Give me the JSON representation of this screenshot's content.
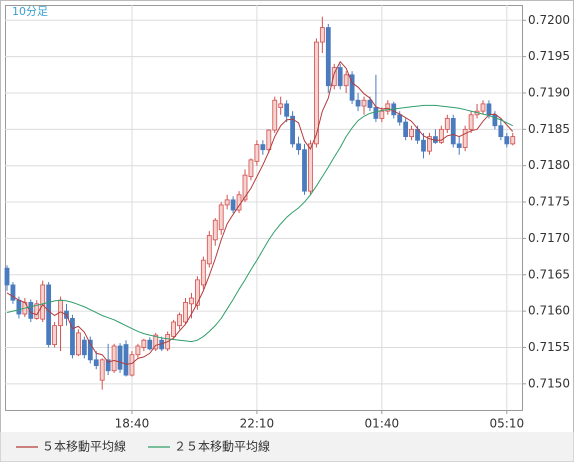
{
  "chart_data": {
    "type": "candlestick",
    "title": "10分足",
    "categories": [
      null,
      null,
      null,
      null,
      null,
      null,
      null,
      null,
      null,
      null,
      null,
      null,
      null,
      null,
      null,
      null,
      null,
      null,
      null,
      null,
      null,
      "18:40",
      null,
      null,
      null,
      null,
      null,
      null,
      null,
      null,
      null,
      null,
      null,
      null,
      null,
      null,
      null,
      null,
      null,
      null,
      null,
      null,
      "22:10",
      null,
      null,
      null,
      null,
      null,
      null,
      null,
      null,
      null,
      null,
      null,
      null,
      null,
      null,
      null,
      null,
      null,
      null,
      null,
      null,
      "01:40",
      null,
      null,
      null,
      null,
      null,
      null,
      null,
      null,
      null,
      null,
      null,
      null,
      null,
      null,
      null,
      null,
      null,
      null,
      null,
      null,
      "05:10",
      null
    ],
    "open": [
      0.71659,
      0.71636,
      0.71615,
      0.71596,
      0.71612,
      0.7159,
      0.71589,
      0.71636,
      0.71554,
      0.7158,
      0.716,
      0.7159,
      0.7154,
      0.7156,
      0.7156,
      0.71533,
      0.71505,
      0.71533,
      0.71518,
      0.71552,
      0.71554,
      0.71512,
      0.7154,
      0.7155,
      0.7156,
      0.71548,
      0.7156,
      0.71548,
      0.71565,
      0.7158,
      0.71585,
      0.7161,
      0.71608,
      0.71636,
      0.71665,
      0.71698,
      0.71712,
      0.71746,
      0.71753,
      0.71739,
      0.71753,
      0.71785,
      0.71806,
      0.71829,
      0.71822,
      0.71849,
      0.7188,
      0.71885,
      0.71868,
      0.7183,
      0.71822,
      0.71765,
      0.7183,
      0.7197,
      0.7199,
      0.7191,
      0.71935,
      0.7191,
      0.71925,
      0.7189,
      0.71882,
      0.7189,
      0.7188,
      0.71865,
      0.71875,
      0.71885,
      0.7187,
      0.7186,
      0.7184,
      0.7185,
      0.71835,
      0.7182,
      0.7184,
      0.71832,
      0.7185,
      0.71865,
      0.7183,
      0.71825,
      0.7185,
      0.7187,
      0.71875,
      0.71885,
      0.7187,
      0.71855,
      0.7184,
      0.7183
    ],
    "high": [
      0.71663,
      0.7164,
      0.7162,
      0.71618,
      0.71616,
      0.71615,
      0.71642,
      0.7164,
      0.71585,
      0.7162,
      0.7161,
      0.71595,
      0.71575,
      0.71565,
      0.71565,
      0.71545,
      0.71535,
      0.71555,
      0.71555,
      0.71556,
      0.7156,
      0.71545,
      0.71555,
      0.71562,
      0.71564,
      0.7157,
      0.71565,
      0.71572,
      0.71588,
      0.71598,
      0.71618,
      0.71625,
      0.71648,
      0.71675,
      0.7171,
      0.71728,
      0.7175,
      0.7176,
      0.71758,
      0.71765,
      0.71795,
      0.7181,
      0.71835,
      0.71835,
      0.7185,
      0.71895,
      0.71895,
      0.7189,
      0.71875,
      0.7184,
      0.7183,
      0.71835,
      0.71975,
      0.72005,
      0.71995,
      0.7194,
      0.7194,
      0.7193,
      0.7193,
      0.719,
      0.71895,
      0.71895,
      0.71925,
      0.7188,
      0.7189,
      0.71888,
      0.71875,
      0.71865,
      0.71855,
      0.71855,
      0.71845,
      0.71845,
      0.7185,
      0.71855,
      0.7187,
      0.7187,
      0.7184,
      0.71855,
      0.71875,
      0.71885,
      0.7189,
      0.7189,
      0.71875,
      0.71865,
      0.71845,
      0.71845
    ],
    "low": [
      0.71628,
      0.7161,
      0.7159,
      0.71592,
      0.71585,
      0.71588,
      0.71585,
      0.7155,
      0.7155,
      0.71545,
      0.7158,
      0.71535,
      0.71538,
      0.71535,
      0.71528,
      0.7152,
      0.71492,
      0.71512,
      0.71515,
      0.71515,
      0.7151,
      0.7151,
      0.71536,
      0.71545,
      0.71546,
      0.71545,
      0.71545,
      0.71545,
      0.71562,
      0.71575,
      0.71582,
      0.7159,
      0.71602,
      0.7163,
      0.7166,
      0.7169,
      0.71705,
      0.7174,
      0.71735,
      0.71735,
      0.7175,
      0.7178,
      0.718,
      0.71815,
      0.71818,
      0.71845,
      0.7187,
      0.7186,
      0.71825,
      0.71815,
      0.7176,
      0.7176,
      0.71825,
      0.71955,
      0.719,
      0.71905,
      0.71905,
      0.719,
      0.71885,
      0.71875,
      0.7187,
      0.71875,
      0.7186,
      0.7186,
      0.7187,
      0.71865,
      0.71855,
      0.71835,
      0.71835,
      0.7183,
      0.7181,
      0.71815,
      0.7183,
      0.7183,
      0.71845,
      0.71825,
      0.71815,
      0.7182,
      0.71845,
      0.71865,
      0.7187,
      0.71865,
      0.7185,
      0.71835,
      0.71825,
      0.71828
    ],
    "close": [
      0.71636,
      0.71615,
      0.71596,
      0.71612,
      0.7159,
      0.7161,
      0.71636,
      0.71554,
      0.7158,
      0.71615,
      0.7159,
      0.7154,
      0.7157,
      0.7154,
      0.71533,
      0.71525,
      0.71533,
      0.71518,
      0.71552,
      0.7152,
      0.71512,
      0.7154,
      0.71552,
      0.7156,
      0.71548,
      0.71567,
      0.71548,
      0.71568,
      0.71585,
      0.71595,
      0.71612,
      0.71618,
      0.71643,
      0.7167,
      0.71704,
      0.71725,
      0.71746,
      0.71753,
      0.71739,
      0.7176,
      0.71787,
      0.71808,
      0.71829,
      0.71822,
      0.71849,
      0.7189,
      0.71885,
      0.71868,
      0.7183,
      0.71822,
      0.71765,
      0.7183,
      0.7197,
      0.7199,
      0.7191,
      0.71935,
      0.7191,
      0.71925,
      0.7189,
      0.71882,
      0.7189,
      0.7188,
      0.71865,
      0.71875,
      0.71885,
      0.7187,
      0.7186,
      0.7184,
      0.7185,
      0.71835,
      0.7182,
      0.7184,
      0.71832,
      0.7185,
      0.71865,
      0.7183,
      0.71825,
      0.7185,
      0.7187,
      0.71875,
      0.71885,
      0.7187,
      0.71855,
      0.7184,
      0.7183,
      0.7184
    ],
    "up_color": "#d24f4f",
    "up_fill": "#f6d3cf",
    "down_color": "#4a7bbd",
    "series": [
      {
        "name": "５本移動平均線",
        "color": "#b43c3c",
        "values": [
          0.71625,
          0.7162,
          0.71615,
          0.71612,
          0.71598,
          0.71595,
          0.71609,
          0.716,
          0.71594,
          0.71599,
          0.71595,
          0.71576,
          0.71579,
          0.71571,
          0.71555,
          0.71542,
          0.7154,
          0.7153,
          0.71532,
          0.7153,
          0.71527,
          0.71528,
          0.71535,
          0.71537,
          0.71542,
          0.71553,
          0.71555,
          0.71558,
          0.71563,
          0.71573,
          0.71582,
          0.71596,
          0.71611,
          0.71628,
          0.71649,
          0.71672,
          0.71698,
          0.7172,
          0.71733,
          0.71745,
          0.71757,
          0.71769,
          0.71785,
          0.71801,
          0.71819,
          0.7184,
          0.71855,
          0.71863,
          0.71864,
          0.71859,
          0.71834,
          0.71823,
          0.71843,
          0.71875,
          0.71893,
          0.71927,
          0.71943,
          0.71934,
          0.71914,
          0.71908,
          0.71899,
          0.71893,
          0.71881,
          0.71878,
          0.71879,
          0.71875,
          0.71871,
          0.71866,
          0.71861,
          0.71851,
          0.71841,
          0.71837,
          0.71835,
          0.71835,
          0.71841,
          0.71843,
          0.7184,
          0.71844,
          0.71848,
          0.7185,
          0.71861,
          0.7187,
          0.71871,
          0.71865,
          0.71856,
          0.71847
        ]
      },
      {
        "name": "２５本移動平均線",
        "color": "#2f9e6a",
        "values": [
          0.71598,
          0.716,
          0.71602,
          0.71604,
          0.71606,
          0.71608,
          0.7161,
          0.71612,
          0.71614,
          0.71615,
          0.71614,
          0.71612,
          0.71609,
          0.71606,
          0.71602,
          0.71598,
          0.71594,
          0.71591,
          0.71588,
          0.71584,
          0.7158,
          0.71576,
          0.71572,
          0.71569,
          0.71567,
          0.71565,
          0.71563,
          0.71562,
          0.71561,
          0.7156,
          0.71559,
          0.71558,
          0.7156,
          0.71565,
          0.71572,
          0.7158,
          0.7159,
          0.71603,
          0.71616,
          0.7163,
          0.71643,
          0.71657,
          0.7167,
          0.71684,
          0.71698,
          0.7171,
          0.7172,
          0.71729,
          0.71736,
          0.71742,
          0.7175,
          0.7176,
          0.71772,
          0.71785,
          0.71798,
          0.71812,
          0.71825,
          0.7184,
          0.71852,
          0.71862,
          0.71868,
          0.71872,
          0.71874,
          0.71876,
          0.71877,
          0.71878,
          0.71879,
          0.7188,
          0.71881,
          0.71882,
          0.71883,
          0.71883,
          0.71883,
          0.71882,
          0.71881,
          0.7188,
          0.71879,
          0.71877,
          0.71875,
          0.71873,
          0.71871,
          0.71869,
          0.71866,
          0.71863,
          0.71859,
          0.71855
        ]
      }
    ],
    "ylim": [
      0.71464,
      0.72021
    ],
    "yticks": [
      {
        "value": 0.715,
        "label": "0.7150"
      },
      {
        "value": 0.7155,
        "label": "0.7155"
      },
      {
        "value": 0.716,
        "label": "0.7160"
      },
      {
        "value": 0.7165,
        "label": "0.7165"
      },
      {
        "value": 0.717,
        "label": "0.7170"
      },
      {
        "value": 0.7175,
        "label": "0.7175"
      },
      {
        "value": 0.718,
        "label": "0.7180"
      },
      {
        "value": 0.7185,
        "label": "0.7185"
      },
      {
        "value": 0.719,
        "label": "0.7190"
      },
      {
        "value": 0.7195,
        "label": "0.7195"
      },
      {
        "value": 0.72,
        "label": "0.7200"
      }
    ],
    "grid": true,
    "legend": "bottom"
  }
}
